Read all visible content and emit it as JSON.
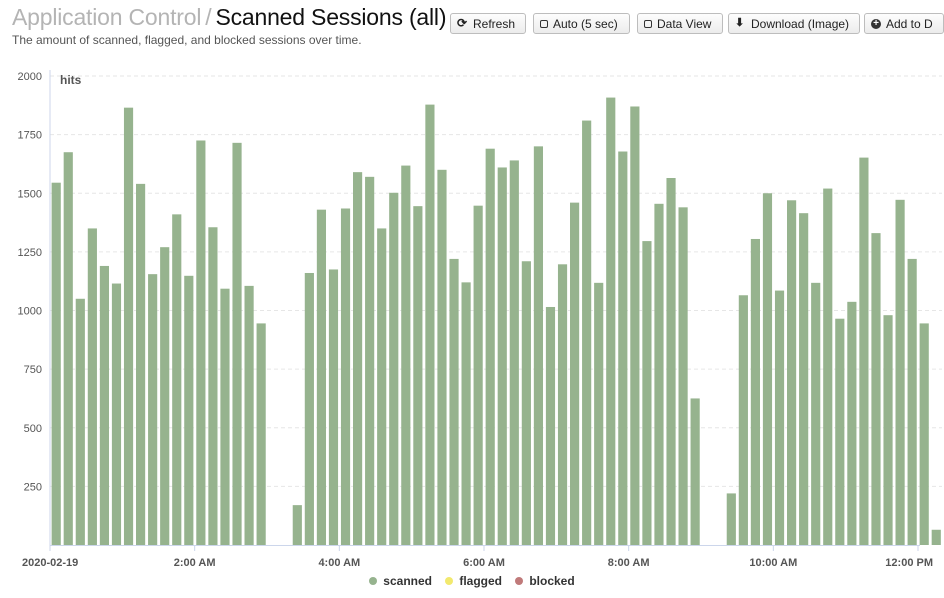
{
  "header": {
    "parent_title": "Application Control",
    "separator": "/",
    "current_title": "Scanned Sessions (all)",
    "subtitle": "The amount of scanned, flagged, and blocked sessions over time."
  },
  "toolbar": {
    "refresh_label": "Refresh",
    "auto_label": "Auto (5 sec)",
    "data_view_label": "Data View",
    "download_label": "Download (Image)",
    "add_label": "Add to D"
  },
  "colors": {
    "scanned": "#96b38e",
    "flagged": "#f2e96e",
    "blocked": "#c07a7a",
    "grid": "#e6e6e6"
  },
  "chart_data": {
    "type": "bar",
    "title": "",
    "ylabel": "hits",
    "ylim": [
      0,
      2000
    ],
    "yticks": [
      250,
      500,
      750,
      1000,
      1250,
      1500,
      1750,
      2000
    ],
    "xticks": [
      {
        "label": "2020-02-19",
        "hour": 0
      },
      {
        "label": "2:00 AM",
        "hour": 2
      },
      {
        "label": "4:00 AM",
        "hour": 4
      },
      {
        "label": "6:00 AM",
        "hour": 6
      },
      {
        "label": "8:00 AM",
        "hour": 8
      },
      {
        "label": "10:00 AM",
        "hour": 10
      },
      {
        "label": "12:00 PM",
        "hour": 12
      }
    ],
    "interval_minutes": 10,
    "grid": true,
    "legend_position": "bottom-center",
    "series": [
      {
        "name": "scanned",
        "values": [
          1545,
          1675,
          1050,
          1350,
          1190,
          1115,
          1865,
          1540,
          1155,
          1270,
          1410,
          1148,
          1725,
          1355,
          1093,
          1715,
          1105,
          945,
          null,
          null,
          170,
          1160,
          1430,
          1175,
          1435,
          1590,
          1570,
          1350,
          1502,
          1618,
          1445,
          1878,
          1600,
          1220,
          1120,
          1447,
          1690,
          1610,
          1640,
          1210,
          1700,
          1015,
          1197,
          1460,
          1810,
          1118,
          1908,
          1678,
          1870,
          1296,
          1455,
          1565,
          1440,
          625,
          null,
          null,
          220,
          1065,
          1305,
          1500,
          1085,
          1470,
          1415,
          1118,
          1520,
          965,
          1037,
          1652,
          1330,
          980,
          1472,
          1220,
          945,
          65
        ]
      },
      {
        "name": "flagged",
        "values": []
      },
      {
        "name": "blocked",
        "values": []
      }
    ]
  }
}
